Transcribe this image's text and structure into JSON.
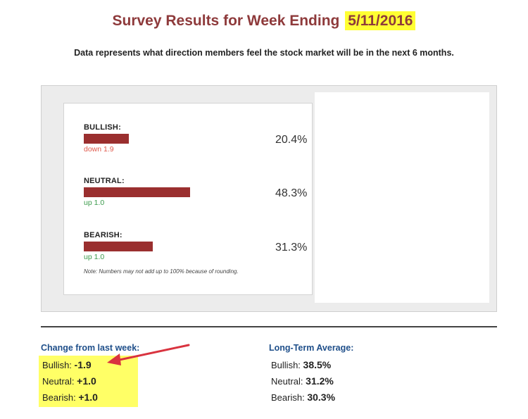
{
  "header": {
    "title_prefix": "Survey Results for Week Ending",
    "date": "5/11/2016",
    "subtitle": "Data represents what direction members feel the stock market will be in the next 6 months."
  },
  "survey": {
    "rows": [
      {
        "label": "BULLISH:",
        "change": "down 1.9",
        "direction": "down",
        "percent": "20.4%",
        "value": 20.4
      },
      {
        "label": "NEUTRAL:",
        "change": "up 1.0",
        "direction": "up",
        "percent": "48.3%",
        "value": 48.3
      },
      {
        "label": "BEARISH:",
        "change": "up 1.0",
        "direction": "up",
        "percent": "31.3%",
        "value": 31.3
      }
    ],
    "note": "Note: Numbers may not add up to 100% because of rounding."
  },
  "change_section": {
    "heading": "Change from last week:",
    "items": [
      {
        "label": "Bullish:",
        "value": "-1.9"
      },
      {
        "label": "Neutral:",
        "value": "+1.0"
      },
      {
        "label": "Bearish:",
        "value": "+1.0"
      }
    ]
  },
  "average_section": {
    "heading": "Long-Term Average:",
    "items": [
      {
        "label": "Bullish:",
        "value": "38.5%"
      },
      {
        "label": "Neutral:",
        "value": "31.2%"
      },
      {
        "label": "Bearish:",
        "value": "30.3%"
      }
    ]
  },
  "colors": {
    "bar": "#9a2f2f",
    "title": "#8e3a3b",
    "highlight": "#ffff66",
    "arrow": "#d9333f"
  }
}
